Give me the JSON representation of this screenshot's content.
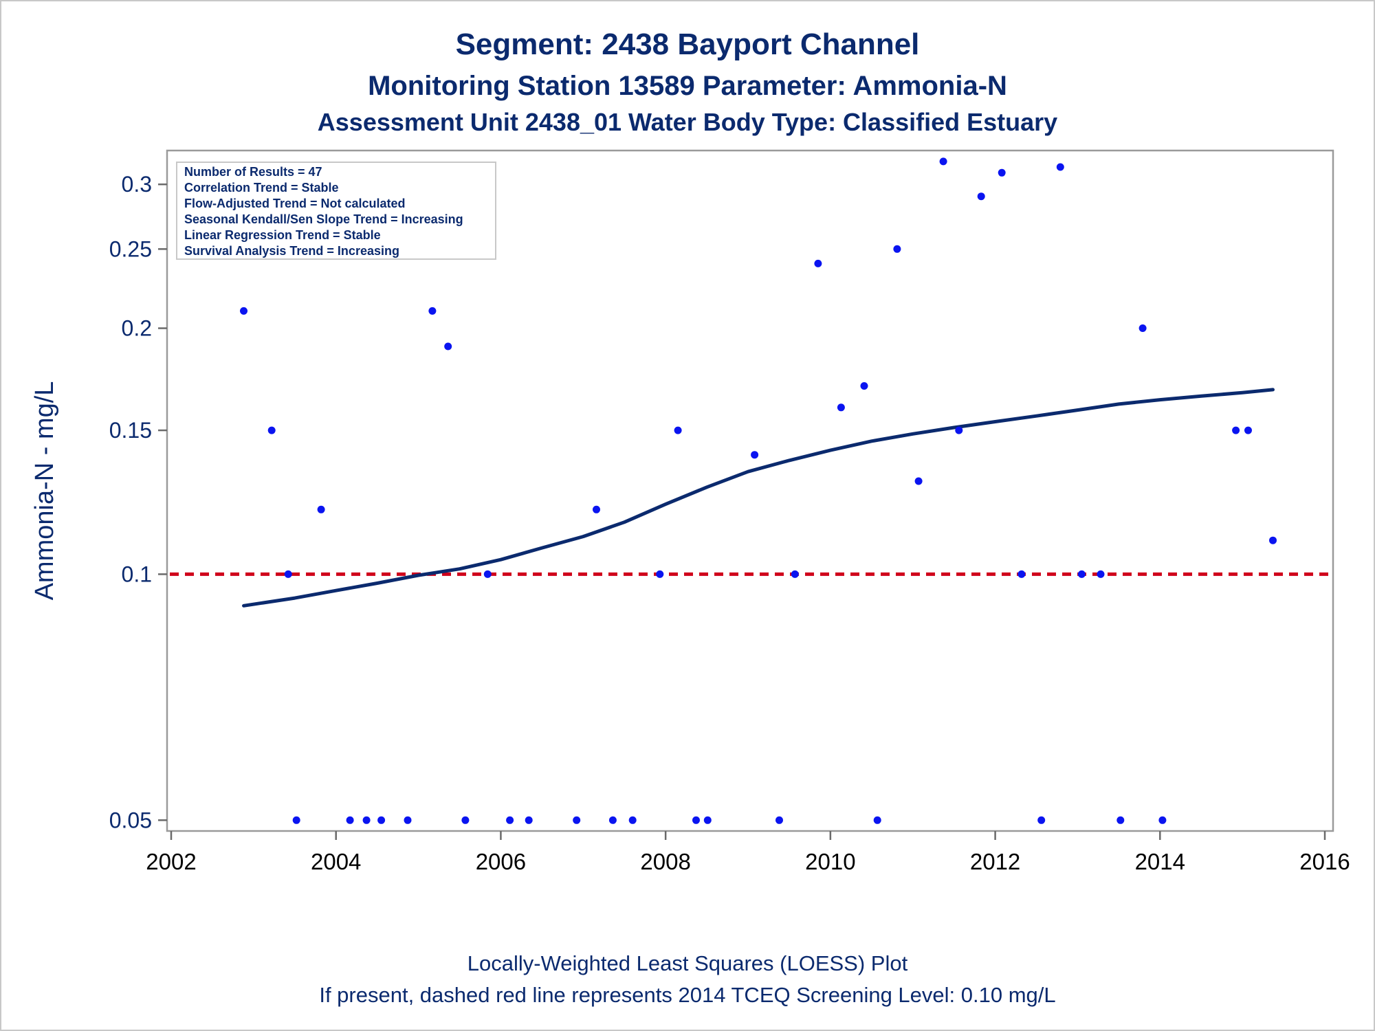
{
  "chart_data": {
    "type": "scatter",
    "title": "Segment: 2438  Bayport Channel",
    "subtitle": "Monitoring Station 13589 Parameter: Ammonia-N",
    "subtitle2": "Assessment Unit 2438_01   Water Body Type: Classified Estuary",
    "ylabel": "Ammonia-N - mg/L",
    "xlabel": "",
    "footnote1": "Locally-Weighted Least Squares (LOESS) Plot",
    "footnote2": "If present, dashed red line represents 2014 TCEQ Screening Level: 0.10 mg/L",
    "y_scale": "log",
    "xlim": [
      2001.95,
      2016.1
    ],
    "ylim": [
      0.0485,
      0.33
    ],
    "x_ticks": [
      2002,
      2004,
      2006,
      2008,
      2010,
      2012,
      2014,
      2016
    ],
    "x_tick_labels": [
      "2002",
      "2004",
      "2006",
      "2008",
      "2010",
      "2012",
      "2014",
      "2016"
    ],
    "y_ticks": [
      0.05,
      0.1,
      0.15,
      0.2,
      0.25,
      0.3
    ],
    "y_tick_labels": [
      "0.05",
      "0.1",
      "0.15",
      "0.2",
      "0.25",
      "0.3"
    ],
    "grid": false,
    "stats_box": [
      "Number of Results = 47",
      "Correlation Trend = Stable",
      "Flow-Adjusted Trend = Not calculated",
      "Seasonal Kendall/Sen Slope Trend = Increasing",
      "Linear Regression Trend = Stable",
      "Survival Analysis Trend = Increasing"
    ],
    "stats_box_position": "top-left",
    "colors": {
      "points": "#0a14f0",
      "loess": "#0b2a6e",
      "screening": "#d0021b",
      "text": "#0b2a6e"
    },
    "screening_level": 0.1,
    "points": [
      {
        "x": 2002.88,
        "y": 0.21
      },
      {
        "x": 2003.22,
        "y": 0.15
      },
      {
        "x": 2003.42,
        "y": 0.1
      },
      {
        "x": 2003.52,
        "y": 0.05
      },
      {
        "x": 2003.82,
        "y": 0.12
      },
      {
        "x": 2004.17,
        "y": 0.05
      },
      {
        "x": 2004.37,
        "y": 0.05
      },
      {
        "x": 2004.55,
        "y": 0.05
      },
      {
        "x": 2004.87,
        "y": 0.05
      },
      {
        "x": 2005.17,
        "y": 0.21
      },
      {
        "x": 2005.36,
        "y": 0.19
      },
      {
        "x": 2005.57,
        "y": 0.05
      },
      {
        "x": 2005.84,
        "y": 0.1
      },
      {
        "x": 2006.11,
        "y": 0.05
      },
      {
        "x": 2006.34,
        "y": 0.05
      },
      {
        "x": 2006.92,
        "y": 0.05
      },
      {
        "x": 2007.16,
        "y": 0.12
      },
      {
        "x": 2007.36,
        "y": 0.05
      },
      {
        "x": 2007.6,
        "y": 0.05
      },
      {
        "x": 2007.93,
        "y": 0.1
      },
      {
        "x": 2008.15,
        "y": 0.15
      },
      {
        "x": 2008.37,
        "y": 0.05
      },
      {
        "x": 2008.51,
        "y": 0.05
      },
      {
        "x": 2009.08,
        "y": 0.14
      },
      {
        "x": 2009.38,
        "y": 0.05
      },
      {
        "x": 2009.57,
        "y": 0.1
      },
      {
        "x": 2009.85,
        "y": 0.24
      },
      {
        "x": 2010.13,
        "y": 0.16
      },
      {
        "x": 2010.41,
        "y": 0.17
      },
      {
        "x": 2010.57,
        "y": 0.05
      },
      {
        "x": 2010.81,
        "y": 0.25
      },
      {
        "x": 2011.07,
        "y": 0.13
      },
      {
        "x": 2011.37,
        "y": 0.32
      },
      {
        "x": 2011.56,
        "y": 0.15
      },
      {
        "x": 2011.83,
        "y": 0.29
      },
      {
        "x": 2012.08,
        "y": 0.31
      },
      {
        "x": 2012.32,
        "y": 0.1
      },
      {
        "x": 2012.56,
        "y": 0.05
      },
      {
        "x": 2012.79,
        "y": 0.315
      },
      {
        "x": 2013.05,
        "y": 0.1
      },
      {
        "x": 2013.28,
        "y": 0.1
      },
      {
        "x": 2013.52,
        "y": 0.05
      },
      {
        "x": 2013.79,
        "y": 0.2
      },
      {
        "x": 2014.03,
        "y": 0.05
      },
      {
        "x": 2014.92,
        "y": 0.15
      },
      {
        "x": 2015.07,
        "y": 0.15
      },
      {
        "x": 2015.37,
        "y": 0.11
      }
    ],
    "loess_curve": [
      {
        "x": 2002.88,
        "y": 0.0915
      },
      {
        "x": 2003.5,
        "y": 0.0935
      },
      {
        "x": 2004.0,
        "y": 0.0955
      },
      {
        "x": 2004.5,
        "y": 0.0975
      },
      {
        "x": 2005.0,
        "y": 0.0997
      },
      {
        "x": 2005.5,
        "y": 0.1015
      },
      {
        "x": 2006.0,
        "y": 0.1042
      },
      {
        "x": 2006.5,
        "y": 0.1077
      },
      {
        "x": 2007.0,
        "y": 0.1112
      },
      {
        "x": 2007.5,
        "y": 0.1158
      },
      {
        "x": 2008.0,
        "y": 0.1218
      },
      {
        "x": 2008.5,
        "y": 0.1278
      },
      {
        "x": 2009.0,
        "y": 0.1335
      },
      {
        "x": 2009.5,
        "y": 0.1378
      },
      {
        "x": 2010.0,
        "y": 0.1418
      },
      {
        "x": 2010.5,
        "y": 0.1455
      },
      {
        "x": 2011.0,
        "y": 0.1485
      },
      {
        "x": 2011.5,
        "y": 0.1512
      },
      {
        "x": 2012.0,
        "y": 0.1537
      },
      {
        "x": 2012.5,
        "y": 0.1562
      },
      {
        "x": 2013.0,
        "y": 0.1588
      },
      {
        "x": 2013.5,
        "y": 0.1615
      },
      {
        "x": 2014.0,
        "y": 0.1635
      },
      {
        "x": 2014.5,
        "y": 0.1652
      },
      {
        "x": 2015.0,
        "y": 0.1668
      },
      {
        "x": 2015.37,
        "y": 0.1682
      }
    ]
  }
}
